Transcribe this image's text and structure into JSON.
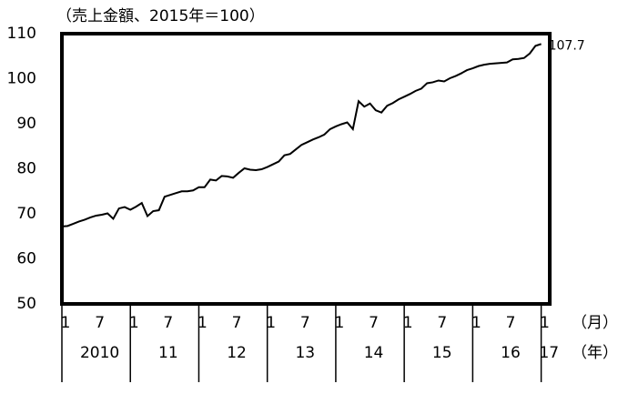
{
  "chart_data": {
    "type": "line",
    "title": "（売上金額、2015年＝100）",
    "color": "#000000",
    "values": [
      67.2,
      67.3,
      67.8,
      68.3,
      68.7,
      69.2,
      69.6,
      69.8,
      70.1,
      68.9,
      71.2,
      71.5,
      70.9,
      71.6,
      72.4,
      69.5,
      70.6,
      70.8,
      73.8,
      74.2,
      74.6,
      75.0,
      75.0,
      75.2,
      75.9,
      75.9,
      77.6,
      77.4,
      78.4,
      78.3,
      78.0,
      79.1,
      80.1,
      79.8,
      79.7,
      79.9,
      80.4,
      81.0,
      81.6,
      83.0,
      83.3,
      84.3,
      85.3,
      85.9,
      86.5,
      87.0,
      87.6,
      88.8,
      89.4,
      89.9,
      90.3,
      88.8,
      95.0,
      93.8,
      94.5,
      93.0,
      92.5,
      94.0,
      94.6,
      95.4,
      96.0,
      96.6,
      97.3,
      97.8,
      99.0,
      99.2,
      99.6,
      99.4,
      100.1,
      100.6,
      101.2,
      101.9,
      102.3,
      102.8,
      103.1,
      103.3,
      103.4,
      103.5,
      103.6,
      104.3,
      104.4,
      104.6,
      105.6,
      107.3,
      107.7
    ],
    "end_label": "107.7",
    "xlim": [
      0,
      85.5
    ],
    "xticks": [
      {
        "value": 0,
        "label": "1"
      },
      {
        "value": 6,
        "label": "7"
      },
      {
        "value": 12,
        "label": "1"
      },
      {
        "value": 18,
        "label": "7"
      },
      {
        "value": 24,
        "label": "1"
      },
      {
        "value": 30,
        "label": "7"
      },
      {
        "value": 36,
        "label": "1"
      },
      {
        "value": 42,
        "label": "7"
      },
      {
        "value": 48,
        "label": "1"
      },
      {
        "value": 54,
        "label": "7"
      },
      {
        "value": 60,
        "label": "1"
      },
      {
        "value": 66,
        "label": "7"
      },
      {
        "value": 72,
        "label": "1"
      },
      {
        "value": 78,
        "label": "7"
      },
      {
        "value": 84,
        "label": "1"
      }
    ],
    "years": [
      "2010",
      "11",
      "12",
      "13",
      "14",
      "15",
      "16",
      "17"
    ],
    "month_unit": "（月）",
    "year_unit": "（年）",
    "ylim": [
      50,
      110
    ],
    "yticks": [
      50,
      60,
      70,
      80,
      90,
      100,
      110
    ]
  }
}
